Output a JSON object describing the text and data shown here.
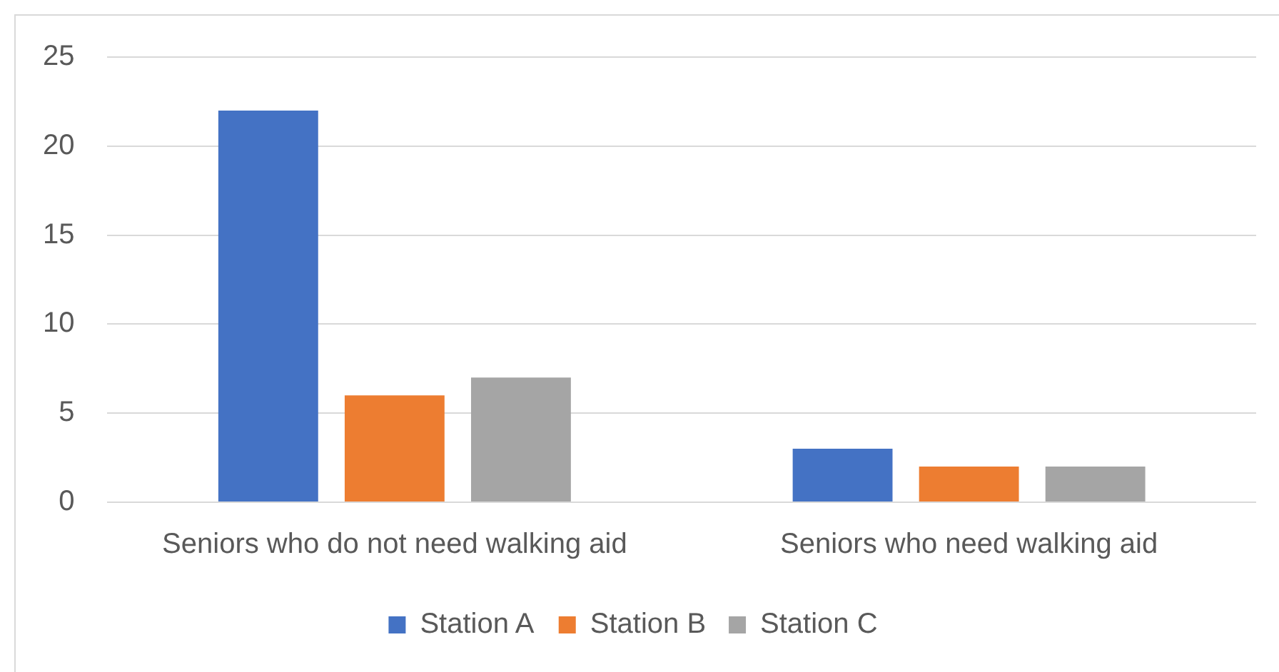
{
  "chart_data": {
    "type": "bar",
    "categories": [
      "Seniors who do not need walking aid",
      "Seniors who need walking aid"
    ],
    "series": [
      {
        "name": "Station A",
        "color": "#4472c4",
        "values": [
          22,
          3
        ]
      },
      {
        "name": "Station B",
        "color": "#ed7d31",
        "values": [
          6,
          2
        ]
      },
      {
        "name": "Station C",
        "color": "#a5a5a5",
        "values": [
          7,
          2
        ]
      }
    ],
    "ylim": [
      0,
      25
    ],
    "yticks": [
      0,
      5,
      10,
      15,
      20,
      25
    ],
    "grid": "y",
    "legend": "bottom"
  }
}
